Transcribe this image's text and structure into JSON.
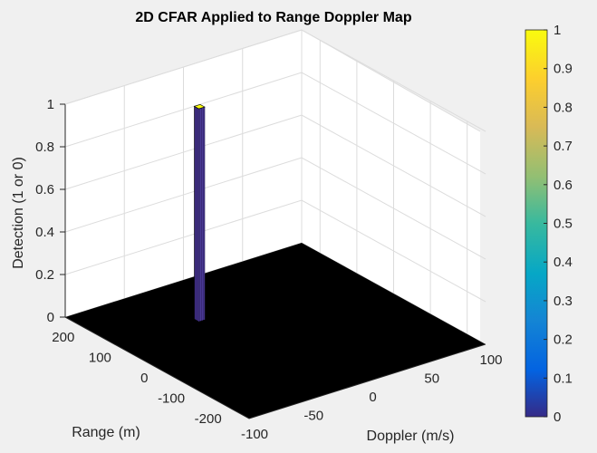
{
  "chart_data": {
    "type": "surface",
    "title": "2D CFAR Applied to Range Doppler Map",
    "xlabel": "Doppler (m/s)",
    "ylabel": "Range (m)",
    "zlabel": "Detection (1 or 0)",
    "xlim": [
      -100,
      100
    ],
    "ylim": [
      -250,
      250
    ],
    "zlim": [
      0,
      1
    ],
    "xticks": [
      -100,
      -50,
      0,
      50,
      100
    ],
    "yticks": [
      -200,
      -100,
      0,
      100,
      200
    ],
    "zticks": [
      0,
      0.2,
      0.4,
      0.6,
      0.8,
      1
    ],
    "grid": true,
    "background_value": 0,
    "peak": {
      "doppler": -30,
      "range": 110,
      "value": 1
    },
    "colorbar": {
      "colormap": "parula",
      "limits": [
        0,
        1
      ],
      "ticks": [
        0,
        0.1,
        0.2,
        0.3,
        0.4,
        0.5,
        0.6,
        0.7,
        0.8,
        0.9,
        1
      ],
      "placement": "right"
    }
  },
  "colors": {
    "figure_bg": "#f0f0f0",
    "axes_bg": "#ffffff",
    "grid": "#dcdcdc",
    "floor": "#000000",
    "peak_face": "#3a2a7a",
    "peak_edge": "#000000"
  }
}
